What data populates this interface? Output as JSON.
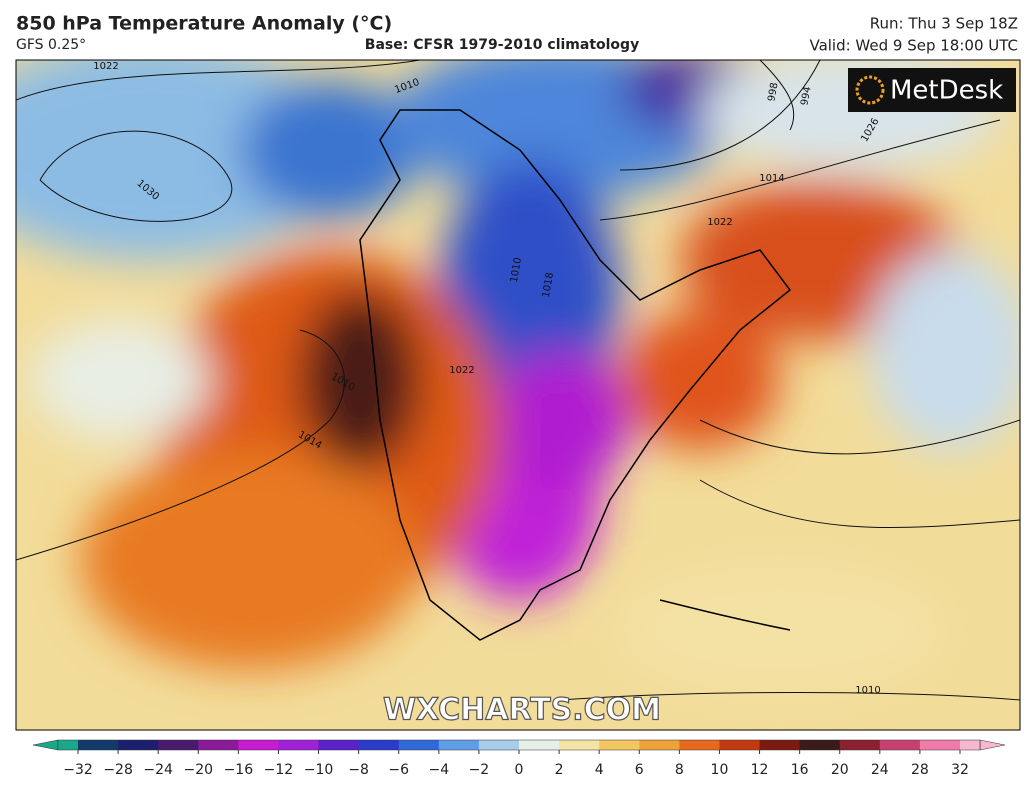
{
  "header": {
    "title": "850 hPa Temperature Anomaly (°C)",
    "model": "GFS 0.25°",
    "base": "Base: CFSR 1979-2010 climatology",
    "run": "Run: Thu 3 Sep 18Z",
    "valid": "Valid: Wed 9 Sep 18:00 UTC"
  },
  "logo": "MetDesk",
  "watermark": "WXCHARTS.COM",
  "isobar_labels": [
    "1022",
    "1010",
    "1030",
    "1014",
    "1026",
    "994",
    "998",
    "1022",
    "1018",
    "1010",
    "1014",
    "1010",
    "1022",
    "1010"
  ],
  "colorbar": {
    "ticks": [
      {
        "value": -32,
        "label": "−32"
      },
      {
        "value": -28,
        "label": "−28"
      },
      {
        "value": -24,
        "label": "−24"
      },
      {
        "value": -20,
        "label": "−20"
      },
      {
        "value": -16,
        "label": "−16"
      },
      {
        "value": -12,
        "label": "−12"
      },
      {
        "value": -10,
        "label": "−10"
      },
      {
        "value": -8,
        "label": "−8"
      },
      {
        "value": -6,
        "label": "−6"
      },
      {
        "value": -4,
        "label": "−4"
      },
      {
        "value": -2,
        "label": "−2"
      },
      0,
      2,
      4,
      6,
      8,
      10,
      12,
      16,
      20,
      24,
      28,
      32
    ],
    "colors": [
      "#19a88a",
      "#123a6b",
      "#1c1f6e",
      "#4a1a6e",
      "#8a1a9a",
      "#c81ad0",
      "#a020d8",
      "#5a22c8",
      "#2a3cc8",
      "#2f6ad8",
      "#5f9ee6",
      "#a8cdeb",
      "#e6efe8",
      "#f3e3a6",
      "#f2c660",
      "#efa23a",
      "#e56a1e",
      "#c23a10",
      "#7a1a10",
      "#3a1a1a",
      "#8a2030",
      "#c84070",
      "#f07aa8",
      "#f6b8d0"
    ]
  }
}
